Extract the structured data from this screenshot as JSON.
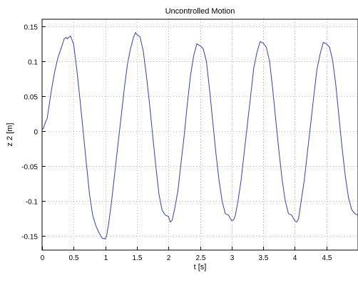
{
  "chart_data": {
    "type": "line",
    "title": "Uncontrolled Motion",
    "xlabel": "t  [s]",
    "ylabel": "z 2  [m]",
    "xlim": [
      0,
      5
    ],
    "ylim": [
      -0.17,
      0.16
    ],
    "grid": true,
    "xticks": [
      0,
      0.5,
      1,
      1.5,
      2,
      2.5,
      3,
      3.5,
      4,
      4.5
    ],
    "xtick_labels": [
      "0",
      "0.5",
      "1",
      "1.5",
      "2",
      "2.5",
      "3",
      "3.5",
      "4",
      "4.5"
    ],
    "yticks": [
      0.15,
      0.1,
      0.05,
      0,
      -0.05,
      -0.1,
      -0.15
    ],
    "ytick_labels": [
      "0.15",
      "0.1",
      "0.05",
      "0",
      "-0.05",
      "-0.1",
      "-0.15"
    ],
    "series_color": "#3a3ac8",
    "series": [
      {
        "points": [
          [
            0.0,
            0.002
          ],
          [
            0.02,
            0.004
          ],
          [
            0.05,
            0.012
          ],
          [
            0.08,
            0.018
          ],
          [
            0.1,
            0.03
          ],
          [
            0.15,
            0.06
          ],
          [
            0.2,
            0.085
          ],
          [
            0.25,
            0.105
          ],
          [
            0.3,
            0.118
          ],
          [
            0.35,
            0.132
          ],
          [
            0.38,
            0.134
          ],
          [
            0.4,
            0.132
          ],
          [
            0.42,
            0.134
          ],
          [
            0.45,
            0.136
          ],
          [
            0.5,
            0.124
          ],
          [
            0.55,
            0.088
          ],
          [
            0.6,
            0.045
          ],
          [
            0.65,
            0.0
          ],
          [
            0.7,
            -0.045
          ],
          [
            0.75,
            -0.09
          ],
          [
            0.8,
            -0.12
          ],
          [
            0.85,
            -0.135
          ],
          [
            0.9,
            -0.145
          ],
          [
            0.95,
            -0.153
          ],
          [
            1.0,
            -0.154
          ],
          [
            1.02,
            -0.15
          ],
          [
            1.05,
            -0.135
          ],
          [
            1.1,
            -0.1
          ],
          [
            1.15,
            -0.06
          ],
          [
            1.2,
            -0.02
          ],
          [
            1.25,
            0.02
          ],
          [
            1.3,
            0.06
          ],
          [
            1.35,
            0.095
          ],
          [
            1.4,
            0.118
          ],
          [
            1.45,
            0.135
          ],
          [
            1.48,
            0.141
          ],
          [
            1.5,
            0.138
          ],
          [
            1.55,
            0.135
          ],
          [
            1.6,
            0.115
          ],
          [
            1.65,
            0.08
          ],
          [
            1.7,
            0.04
          ],
          [
            1.75,
            -0.005
          ],
          [
            1.8,
            -0.05
          ],
          [
            1.85,
            -0.09
          ],
          [
            1.9,
            -0.113
          ],
          [
            1.95,
            -0.12
          ],
          [
            2.0,
            -0.122
          ],
          [
            2.03,
            -0.13
          ],
          [
            2.06,
            -0.127
          ],
          [
            2.1,
            -0.11
          ],
          [
            2.15,
            -0.085
          ],
          [
            2.2,
            -0.045
          ],
          [
            2.25,
            -0.005
          ],
          [
            2.3,
            0.04
          ],
          [
            2.35,
            0.08
          ],
          [
            2.4,
            0.108
          ],
          [
            2.45,
            0.125
          ],
          [
            2.5,
            0.122
          ],
          [
            2.55,
            0.118
          ],
          [
            2.6,
            0.1
          ],
          [
            2.65,
            0.06
          ],
          [
            2.7,
            0.015
          ],
          [
            2.75,
            -0.03
          ],
          [
            2.8,
            -0.07
          ],
          [
            2.85,
            -0.1
          ],
          [
            2.9,
            -0.118
          ],
          [
            2.95,
            -0.12
          ],
          [
            3.0,
            -0.128
          ],
          [
            3.03,
            -0.127
          ],
          [
            3.06,
            -0.12
          ],
          [
            3.1,
            -0.1
          ],
          [
            3.15,
            -0.07
          ],
          [
            3.2,
            -0.03
          ],
          [
            3.25,
            0.01
          ],
          [
            3.3,
            0.05
          ],
          [
            3.35,
            0.09
          ],
          [
            3.4,
            0.112
          ],
          [
            3.45,
            0.128
          ],
          [
            3.5,
            0.126
          ],
          [
            3.55,
            0.12
          ],
          [
            3.6,
            0.1
          ],
          [
            3.65,
            0.06
          ],
          [
            3.7,
            0.015
          ],
          [
            3.75,
            -0.03
          ],
          [
            3.8,
            -0.07
          ],
          [
            3.85,
            -0.1
          ],
          [
            3.9,
            -0.118
          ],
          [
            3.95,
            -0.12
          ],
          [
            4.0,
            -0.128
          ],
          [
            4.03,
            -0.13
          ],
          [
            4.06,
            -0.125
          ],
          [
            4.1,
            -0.1
          ],
          [
            4.15,
            -0.07
          ],
          [
            4.2,
            -0.03
          ],
          [
            4.25,
            0.01
          ],
          [
            4.3,
            0.05
          ],
          [
            4.35,
            0.088
          ],
          [
            4.4,
            0.11
          ],
          [
            4.45,
            0.127
          ],
          [
            4.5,
            0.125
          ],
          [
            4.55,
            0.12
          ],
          [
            4.6,
            0.1
          ],
          [
            4.65,
            0.065
          ],
          [
            4.7,
            0.02
          ],
          [
            4.75,
            -0.025
          ],
          [
            4.8,
            -0.065
          ],
          [
            4.85,
            -0.095
          ],
          [
            4.9,
            -0.112
          ],
          [
            4.95,
            -0.118
          ],
          [
            5.0,
            -0.12
          ]
        ]
      }
    ]
  }
}
